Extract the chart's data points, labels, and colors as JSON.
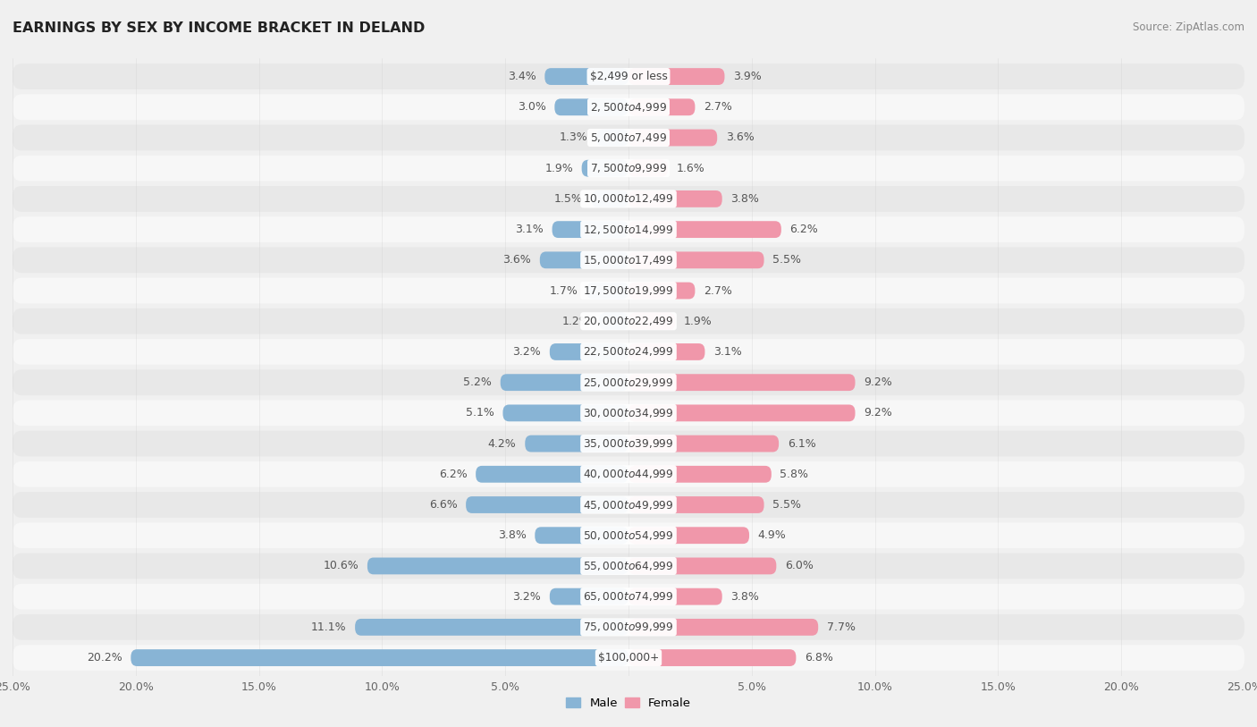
{
  "title": "EARNINGS BY SEX BY INCOME BRACKET IN DELAND",
  "source": "Source: ZipAtlas.com",
  "categories": [
    "$2,499 or less",
    "$2,500 to $4,999",
    "$5,000 to $7,499",
    "$7,500 to $9,999",
    "$10,000 to $12,499",
    "$12,500 to $14,999",
    "$15,000 to $17,499",
    "$17,500 to $19,999",
    "$20,000 to $22,499",
    "$22,500 to $24,999",
    "$25,000 to $29,999",
    "$30,000 to $34,999",
    "$35,000 to $39,999",
    "$40,000 to $44,999",
    "$45,000 to $49,999",
    "$50,000 to $54,999",
    "$55,000 to $64,999",
    "$65,000 to $74,999",
    "$75,000 to $99,999",
    "$100,000+"
  ],
  "male_values": [
    3.4,
    3.0,
    1.3,
    1.9,
    1.5,
    3.1,
    3.6,
    1.7,
    1.2,
    3.2,
    5.2,
    5.1,
    4.2,
    6.2,
    6.6,
    3.8,
    10.6,
    3.2,
    11.1,
    20.2
  ],
  "female_values": [
    3.9,
    2.7,
    3.6,
    1.6,
    3.8,
    6.2,
    5.5,
    2.7,
    1.9,
    3.1,
    9.2,
    9.2,
    6.1,
    5.8,
    5.5,
    4.9,
    6.0,
    3.8,
    7.7,
    6.8
  ],
  "male_color": "#88b4d5",
  "female_color": "#f097aa",
  "bar_height": 0.55,
  "xlim": 25.0,
  "bg_color": "#f0f0f0",
  "row_even_color": "#f7f7f7",
  "row_odd_color": "#e8e8e8",
  "label_color": "#555555",
  "title_color": "#222222",
  "source_color": "#888888"
}
